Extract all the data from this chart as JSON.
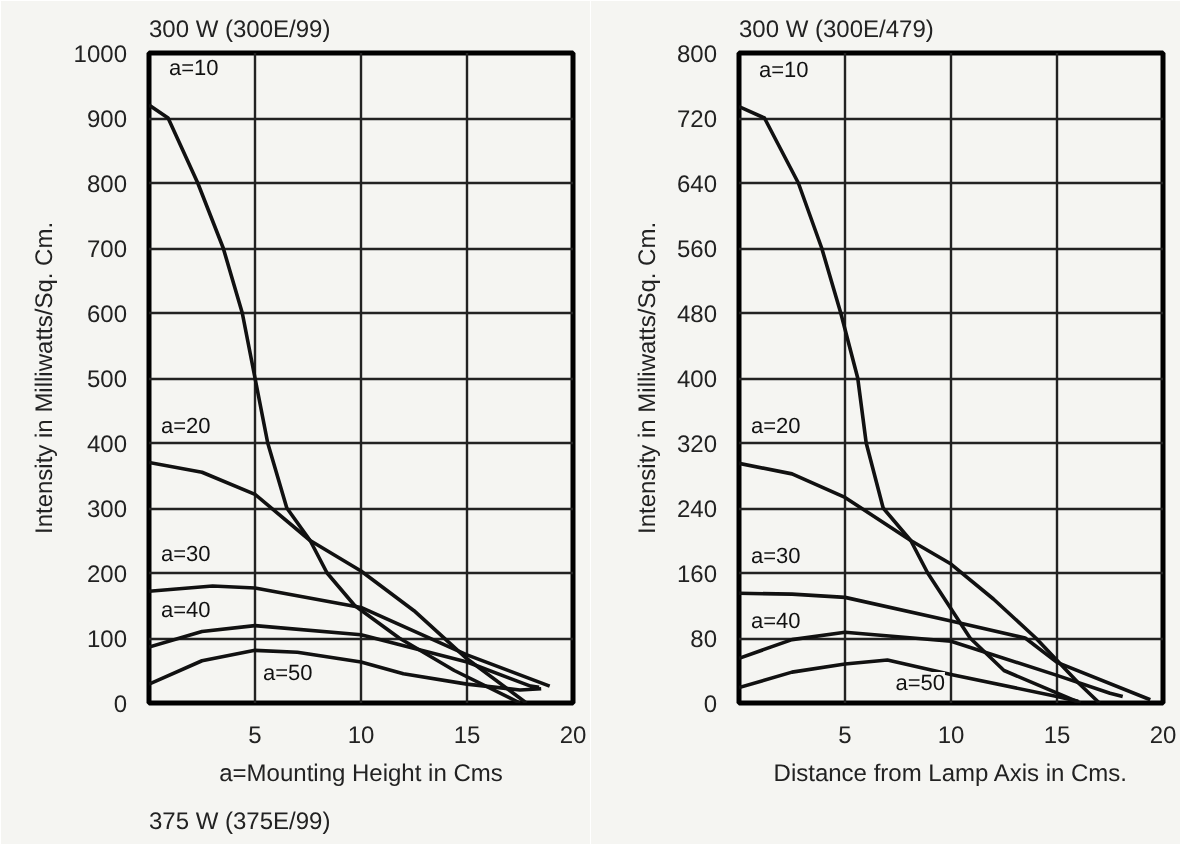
{
  "chart_data": [
    {
      "type": "line",
      "title": "300 W (300E/99)",
      "xlabel": "a=Mounting Height in Cms",
      "ylabel": "Intensity in Milliwatts/Sq. Cm.",
      "xlim": [
        0,
        20
      ],
      "ylim": [
        0,
        1000
      ],
      "xticks": [
        5,
        10,
        15,
        20
      ],
      "yticks": [
        0,
        100,
        200,
        300,
        400,
        500,
        600,
        700,
        800,
        900,
        1000
      ],
      "grid": true,
      "line_style": "solid",
      "marker": "none",
      "series": [
        {
          "name": "a=10",
          "color": "#111111",
          "x": [
            0,
            0.9,
            2.3,
            3.5,
            4.4,
            5.0,
            5.6,
            6.5,
            7.6,
            8.4,
            9.7,
            11.8,
            14.4,
            17.5
          ],
          "values": [
            920,
            900,
            800,
            700,
            600,
            500,
            400,
            300,
            250,
            200,
            150,
            100,
            50,
            0
          ]
        },
        {
          "name": "a=20",
          "color": "#111111",
          "x": [
            0,
            2.5,
            5,
            7.6,
            10,
            12.5,
            15,
            17.8
          ],
          "values": [
            370,
            355,
            321,
            250,
            203,
            142,
            68,
            0
          ]
        },
        {
          "name": "a=30",
          "color": "#111111",
          "x": [
            0,
            3,
            5,
            10,
            12,
            15,
            18.9
          ],
          "values": [
            172,
            180,
            177,
            147,
            118,
            74,
            26
          ]
        },
        {
          "name": "a=40",
          "color": "#111111",
          "x": [
            0,
            2.5,
            5,
            10,
            15,
            18,
            18.4
          ],
          "values": [
            86,
            110,
            119,
            105,
            63,
            26,
            24
          ]
        },
        {
          "name": "a=50",
          "color": "#111111",
          "x": [
            0,
            2.5,
            5,
            7,
            10,
            12,
            15,
            17.5,
            18.5
          ],
          "values": [
            29,
            65,
            81,
            78,
            63,
            45,
            29,
            20,
            22
          ]
        }
      ],
      "annotations": [
        "375 W (375E/99)"
      ]
    },
    {
      "type": "line",
      "title": "300 W (300E/479)",
      "xlabel": "Distance from Lamp Axis in Cms.",
      "ylabel": "Intensity in Milliwatts/Sq. Cm.",
      "xlim": [
        0,
        20
      ],
      "ylim": [
        0,
        800
      ],
      "xticks": [
        5,
        10,
        15,
        20
      ],
      "yticks": [
        0,
        80,
        160,
        240,
        320,
        400,
        480,
        560,
        640,
        720,
        800
      ],
      "grid": true,
      "line_style": "solid",
      "series": [
        {
          "name": "a=10",
          "color": "#111111",
          "x": [
            0,
            1.2,
            2.8,
            3.9,
            4.8,
            5.6,
            6.0,
            6.8,
            8.1,
            8.9,
            10.9,
            12.5,
            16.1
          ],
          "values": [
            734,
            720,
            640,
            560,
            480,
            400,
            320,
            240,
            200,
            160,
            80,
            40,
            0
          ]
        },
        {
          "name": "a=20",
          "color": "#111111",
          "x": [
            0,
            2.5,
            5,
            8.1,
            10,
            12,
            14,
            16,
            17
          ],
          "values": [
            295,
            282,
            253,
            200,
            171,
            128,
            80,
            25,
            0
          ]
        },
        {
          "name": "a=30",
          "color": "#111111",
          "x": [
            0,
            2.5,
            5,
            10,
            13.5,
            15,
            19.4
          ],
          "values": [
            135,
            134,
            130,
            101,
            80,
            50,
            4
          ]
        },
        {
          "name": "a=40",
          "color": "#111111",
          "x": [
            0,
            2.5,
            5,
            10,
            15,
            17.5,
            18.1
          ],
          "values": [
            55,
            78,
            87,
            76,
            34,
            12,
            8
          ]
        },
        {
          "name": "a=50",
          "color": "#111111",
          "x": [
            0,
            2.5,
            5,
            7,
            10,
            15,
            16
          ],
          "values": [
            19,
            38,
            48,
            53,
            35,
            8,
            2
          ]
        }
      ],
      "marker": "none"
    }
  ]
}
